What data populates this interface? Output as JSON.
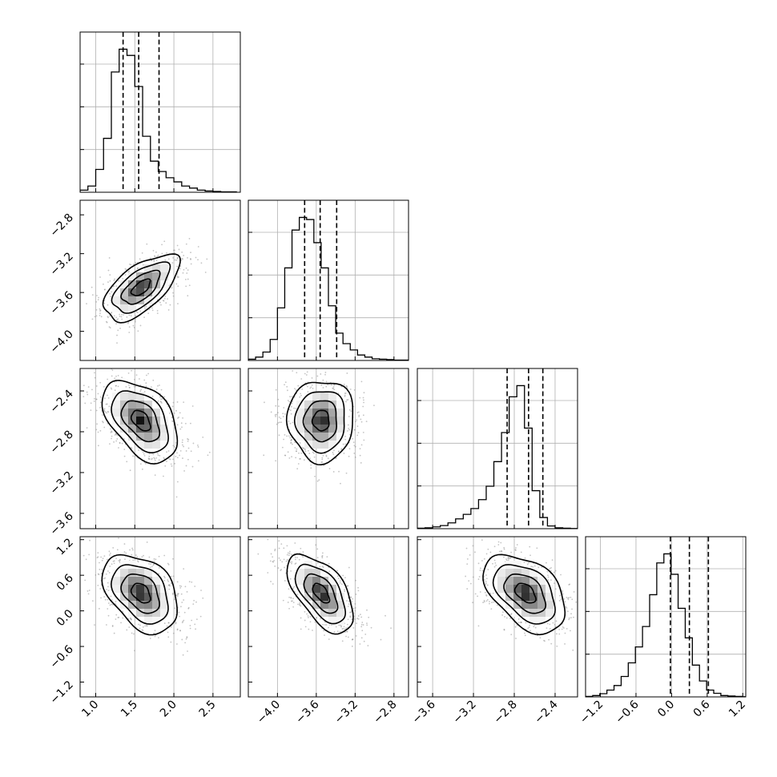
{
  "chart_data": {
    "type": "corner",
    "parameters": 4,
    "ranges": [
      [
        0.8,
        2.85
      ],
      [
        -4.3,
        -2.65
      ],
      [
        -3.75,
        -2.18
      ],
      [
        -1.45,
        1.25
      ]
    ],
    "ticks": [
      {
        "values": [
          1.0,
          1.5,
          2.0,
          2.5
        ],
        "labels": [
          "1.0",
          "1.5",
          "2.0",
          "2.5"
        ]
      },
      {
        "values": [
          -4.0,
          -3.6,
          -3.2,
          -2.8
        ],
        "labels": [
          "−4.0",
          "−3.6",
          "−3.2",
          "−2.8"
        ]
      },
      {
        "values": [
          -3.6,
          -3.2,
          -2.8,
          -2.4
        ],
        "labels": [
          "−3.6",
          "−3.2",
          "−2.8",
          "−2.4"
        ]
      },
      {
        "values": [
          -1.2,
          -0.6,
          0.0,
          0.6,
          1.2
        ],
        "labels": [
          "−1.2",
          "−0.6",
          "0.0",
          "0.6",
          "1.2"
        ]
      }
    ],
    "quantiles": [
      [
        1.35,
        1.55,
        1.81
      ],
      [
        -3.72,
        -3.56,
        -3.39
      ],
      [
        -2.87,
        -2.66,
        -2.52
      ],
      [
        -0.02,
        0.3,
        0.62
      ]
    ],
    "histograms": [
      {
        "edges_start": 0.8,
        "bin_width": 0.1,
        "counts": [
          0.5,
          1.5,
          5.5,
          13,
          29,
          34.5,
          33,
          25.5,
          13.5,
          7.5,
          5,
          3.5,
          2.5,
          1.5,
          1,
          0.5,
          0.3,
          0.2,
          0.1,
          0.1
        ]
      },
      {
        "edges_start": -4.3,
        "bin_width": 0.075,
        "counts": [
          0.3,
          0.8,
          2,
          5,
          12.5,
          22,
          31,
          34,
          33.5,
          28,
          22,
          13,
          6.5,
          4,
          2.5,
          1.3,
          0.8,
          0.4,
          0.3,
          0.2,
          0.1,
          0.1
        ]
      },
      {
        "edges_start": -3.75,
        "bin_width": 0.075,
        "counts": [
          0.1,
          0.2,
          0.4,
          0.7,
          1.3,
          2.2,
          3.2,
          4.5,
          6.5,
          9.5,
          15,
          21.5,
          29.5,
          32,
          22.5,
          8.5,
          2.5,
          0.6,
          0.2,
          0.1,
          0.05
        ]
      },
      {
        "edges_start": -1.45,
        "bin_width": 0.12,
        "counts": [
          0.1,
          0.3,
          0.7,
          1.5,
          2.5,
          4.5,
          7.5,
          11,
          15.5,
          22.5,
          29.5,
          31.5,
          27,
          19.5,
          13,
          7,
          3.5,
          1.5,
          0.8,
          0.3,
          0.2,
          0.1,
          0.05
        ]
      }
    ],
    "correlations": [
      [
        1.0,
        0.62,
        -0.45,
        -0.38
      ],
      [
        0.62,
        1.0,
        0.0,
        -0.58
      ],
      [
        -0.45,
        0.0,
        1.0,
        -0.45
      ],
      [
        -0.38,
        -0.58,
        -0.45,
        1.0
      ]
    ],
    "means": [
      1.58,
      -3.55,
      -2.69,
      0.3
    ],
    "stds": [
      0.24,
      0.17,
      0.2,
      0.33
    ],
    "contour_levels_sigma": [
      0.5,
      1.0,
      1.5,
      2.0
    ],
    "title": "",
    "xlabel": "",
    "ylabel": "",
    "grid": true,
    "legend": "none"
  }
}
